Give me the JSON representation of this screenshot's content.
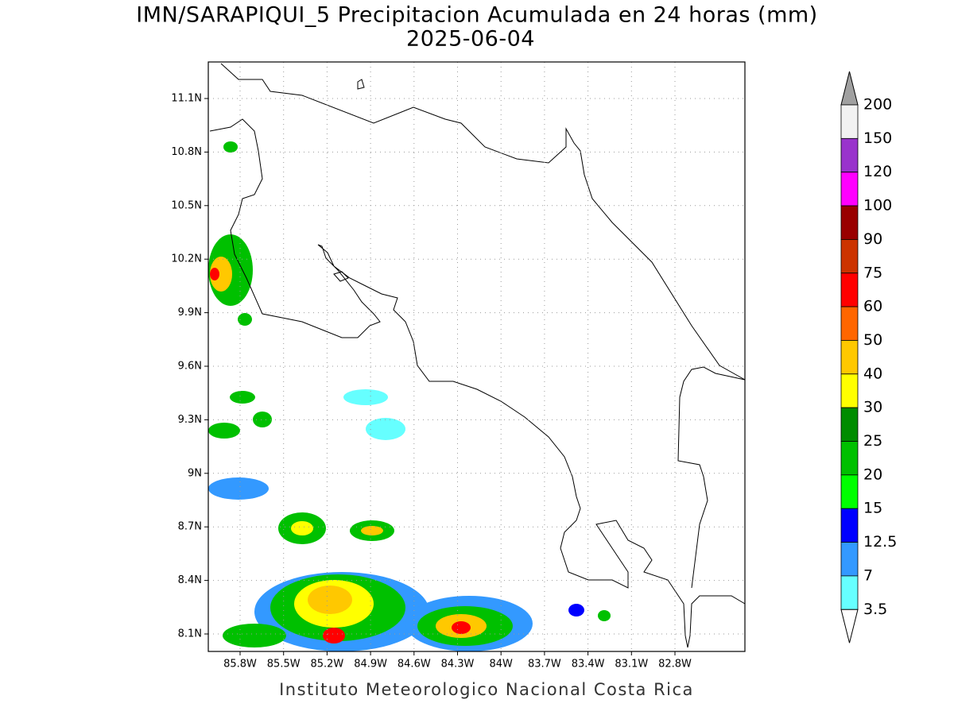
{
  "header": {
    "title": "IMN/SARAPIQUI_5 Precipitacion Acumulada en 24 horas (mm)",
    "date": "2025-06-04"
  },
  "map": {
    "lat_labels": [
      "11.1N",
      "10.8N",
      "10.5N",
      "10.2N",
      "9.9N",
      "9.6N",
      "9.3N",
      "9N",
      "8.7N",
      "8.4N",
      "8.1N"
    ],
    "lon_labels": [
      "85.8W",
      "85.5W",
      "85.2W",
      "84.9W",
      "84.6W",
      "84.3W",
      "84W",
      "83.7W",
      "83.4W",
      "83.1W",
      "82.8W"
    ]
  },
  "colorbar": {
    "labels": [
      "200",
      "150",
      "120",
      "100",
      "90",
      "75",
      "60",
      "50",
      "40",
      "30",
      "25",
      "20",
      "15",
      "12.5",
      "7",
      "3.5"
    ],
    "colors": [
      "#f2f2f2",
      "#9933cc",
      "#ff00ff",
      "#990000",
      "#cc3300",
      "#ff0000",
      "#ff6600",
      "#ffc800",
      "#ffff00",
      "#008c00",
      "#00c000",
      "#00ff00",
      "#0000ff",
      "#3399ff",
      "#66ffff"
    ],
    "over_color": "#a0a0a0",
    "under_color": "#ffffff"
  },
  "footer": "Instituto Meteorologico Nacional Costa Rica"
}
